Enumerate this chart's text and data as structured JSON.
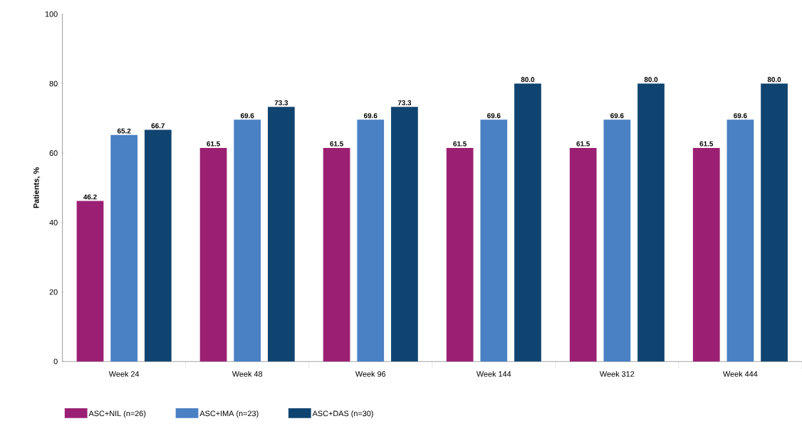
{
  "chart_data": {
    "type": "bar",
    "ylabel": "Patients, %",
    "categories": [
      "Week 24",
      "Week 48",
      "Week 96",
      "Week 144",
      "Week 312",
      "Week 444"
    ],
    "series": [
      {
        "name": "ASC+NIL (n=26)",
        "color": "#9b2073",
        "values": [
          46.2,
          61.5,
          61.5,
          61.5,
          61.5,
          61.5
        ],
        "value_labels": [
          "46.2",
          "61.5",
          "61.5",
          "61.5",
          "61.5",
          "61.5"
        ]
      },
      {
        "name": "ASC+IMA (n=23)",
        "color": "#4a80c4",
        "values": [
          65.2,
          69.6,
          69.6,
          69.6,
          69.6,
          69.6
        ],
        "value_labels": [
          "65.2",
          "69.6",
          "69.6",
          "69.6",
          "69.6",
          "69.6"
        ]
      },
      {
        "name": "ASC+DAS (n=30)",
        "color": "#0f4470",
        "values": [
          66.7,
          73.3,
          73.3,
          80,
          80,
          80
        ],
        "value_labels": [
          "66.7",
          "73.3",
          "73.3",
          "80.0",
          "80.0",
          "80.0"
        ]
      }
    ],
    "ylim": [
      0,
      100
    ],
    "yticks": [
      0,
      20,
      40,
      60,
      80,
      100
    ],
    "grid": false,
    "legend": "bottom"
  }
}
